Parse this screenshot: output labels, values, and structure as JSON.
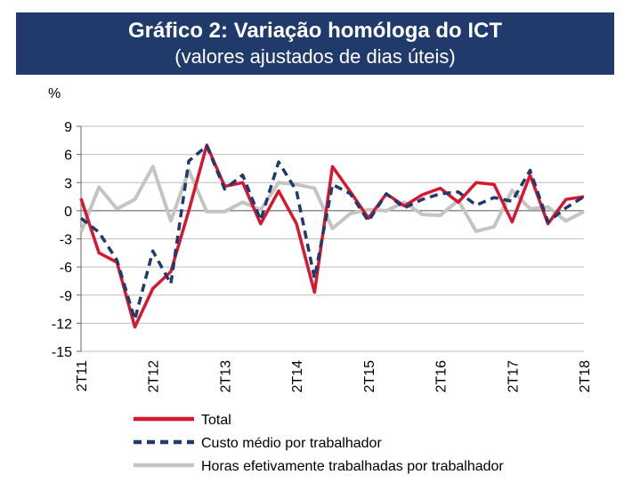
{
  "chart_data": {
    "type": "line",
    "title": "Gráfico 2: Variação homóloga do ICT",
    "subtitle": "(valores ajustados de dias úteis)",
    "ylabel": "%",
    "xlabel": "",
    "ylim": [
      -15,
      9
    ],
    "yticks": [
      "9",
      "6",
      "3",
      "0",
      "-3",
      "-6",
      "-9",
      "-12",
      "-15"
    ],
    "ytick_values": [
      9,
      6,
      3,
      0,
      -3,
      -6,
      -9,
      -12,
      -15
    ],
    "x_tick_labels": [
      "2T11",
      "2T12",
      "2T13",
      "2T14",
      "2T15",
      "2T16",
      "2T17",
      "2T18"
    ],
    "x_tick_indices": [
      0,
      4,
      8,
      12,
      16,
      20,
      24,
      28
    ],
    "grid": true,
    "legend_position": "bottom",
    "series": [
      {
        "name": "Total",
        "color": "#d7172f",
        "dash": "solid",
        "values": [
          1.3,
          -4.5,
          -5.5,
          -12.4,
          -8.3,
          -6.5,
          0.0,
          7.0,
          2.6,
          3.0,
          -1.4,
          2.1,
          -1.4,
          -8.7,
          4.7,
          2.0,
          -0.8,
          1.8,
          0.5,
          1.7,
          2.4,
          0.9,
          3.0,
          2.8,
          -1.2,
          3.8,
          -1.4,
          1.2,
          1.5
        ]
      },
      {
        "name": "Custo médio por trabalhador",
        "color": "#1f3a6b",
        "dash": "dashed",
        "values": [
          -0.8,
          -2.3,
          -5.3,
          -11.6,
          -4.3,
          -7.8,
          5.3,
          6.9,
          2.3,
          3.8,
          -1.0,
          5.2,
          2.1,
          -7.2,
          2.8,
          1.8,
          -1.1,
          1.8,
          0.3,
          1.2,
          1.8,
          2.0,
          0.6,
          1.4,
          1.0,
          4.3,
          -1.2,
          0.3,
          1.5
        ]
      },
      {
        "name": "Horas efetivamente trabalhadas por trabalhador",
        "color": "#c4c4c4",
        "dash": "solid",
        "values": [
          -2.3,
          2.5,
          0.2,
          1.2,
          4.7,
          -1.1,
          4.3,
          -0.1,
          -0.1,
          0.9,
          0.1,
          3.0,
          2.8,
          2.4,
          -1.9,
          -0.3,
          0.1,
          0.0,
          0.9,
          -0.4,
          -0.5,
          1.1,
          -2.2,
          -1.7,
          2.2,
          0.2,
          0.4,
          -1.1,
          -0.1
        ]
      }
    ]
  }
}
